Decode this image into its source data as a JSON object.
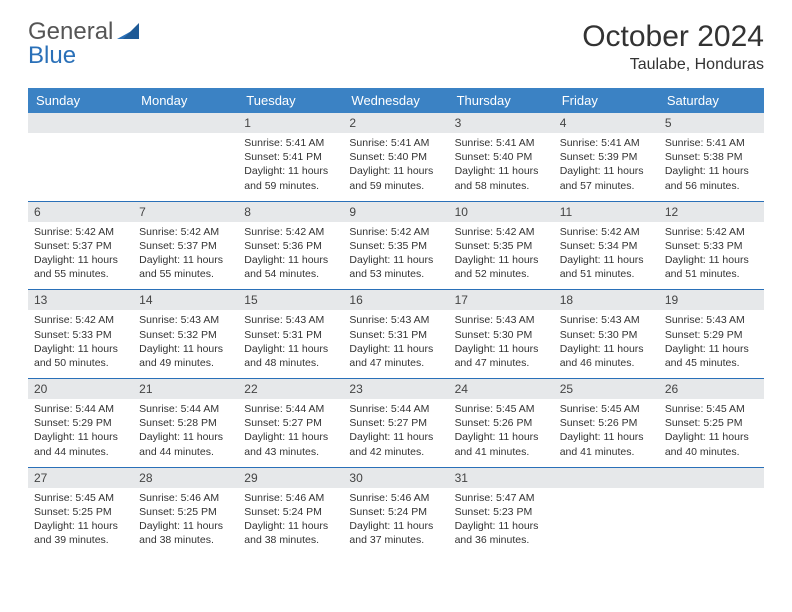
{
  "logo": {
    "gray": "General",
    "blue": "Blue"
  },
  "title": "October 2024",
  "location": "Taulabe, Honduras",
  "weekday_names": [
    "Sunday",
    "Monday",
    "Tuesday",
    "Wednesday",
    "Thursday",
    "Friday",
    "Saturday"
  ],
  "colors": {
    "header_bg": "#3b82c4",
    "header_fg": "#ffffff",
    "daynum_bg": "#e6e8ea",
    "row_border": "#2a70b8",
    "logo_blue": "#2a70b8"
  },
  "weeks": [
    [
      {
        "num": "",
        "sunrise": "",
        "sunset": "",
        "daylight": ""
      },
      {
        "num": "",
        "sunrise": "",
        "sunset": "",
        "daylight": ""
      },
      {
        "num": "1",
        "sunrise": "Sunrise: 5:41 AM",
        "sunset": "Sunset: 5:41 PM",
        "daylight": "Daylight: 11 hours and 59 minutes."
      },
      {
        "num": "2",
        "sunrise": "Sunrise: 5:41 AM",
        "sunset": "Sunset: 5:40 PM",
        "daylight": "Daylight: 11 hours and 59 minutes."
      },
      {
        "num": "3",
        "sunrise": "Sunrise: 5:41 AM",
        "sunset": "Sunset: 5:40 PM",
        "daylight": "Daylight: 11 hours and 58 minutes."
      },
      {
        "num": "4",
        "sunrise": "Sunrise: 5:41 AM",
        "sunset": "Sunset: 5:39 PM",
        "daylight": "Daylight: 11 hours and 57 minutes."
      },
      {
        "num": "5",
        "sunrise": "Sunrise: 5:41 AM",
        "sunset": "Sunset: 5:38 PM",
        "daylight": "Daylight: 11 hours and 56 minutes."
      }
    ],
    [
      {
        "num": "6",
        "sunrise": "Sunrise: 5:42 AM",
        "sunset": "Sunset: 5:37 PM",
        "daylight": "Daylight: 11 hours and 55 minutes."
      },
      {
        "num": "7",
        "sunrise": "Sunrise: 5:42 AM",
        "sunset": "Sunset: 5:37 PM",
        "daylight": "Daylight: 11 hours and 55 minutes."
      },
      {
        "num": "8",
        "sunrise": "Sunrise: 5:42 AM",
        "sunset": "Sunset: 5:36 PM",
        "daylight": "Daylight: 11 hours and 54 minutes."
      },
      {
        "num": "9",
        "sunrise": "Sunrise: 5:42 AM",
        "sunset": "Sunset: 5:35 PM",
        "daylight": "Daylight: 11 hours and 53 minutes."
      },
      {
        "num": "10",
        "sunrise": "Sunrise: 5:42 AM",
        "sunset": "Sunset: 5:35 PM",
        "daylight": "Daylight: 11 hours and 52 minutes."
      },
      {
        "num": "11",
        "sunrise": "Sunrise: 5:42 AM",
        "sunset": "Sunset: 5:34 PM",
        "daylight": "Daylight: 11 hours and 51 minutes."
      },
      {
        "num": "12",
        "sunrise": "Sunrise: 5:42 AM",
        "sunset": "Sunset: 5:33 PM",
        "daylight": "Daylight: 11 hours and 51 minutes."
      }
    ],
    [
      {
        "num": "13",
        "sunrise": "Sunrise: 5:42 AM",
        "sunset": "Sunset: 5:33 PM",
        "daylight": "Daylight: 11 hours and 50 minutes."
      },
      {
        "num": "14",
        "sunrise": "Sunrise: 5:43 AM",
        "sunset": "Sunset: 5:32 PM",
        "daylight": "Daylight: 11 hours and 49 minutes."
      },
      {
        "num": "15",
        "sunrise": "Sunrise: 5:43 AM",
        "sunset": "Sunset: 5:31 PM",
        "daylight": "Daylight: 11 hours and 48 minutes."
      },
      {
        "num": "16",
        "sunrise": "Sunrise: 5:43 AM",
        "sunset": "Sunset: 5:31 PM",
        "daylight": "Daylight: 11 hours and 47 minutes."
      },
      {
        "num": "17",
        "sunrise": "Sunrise: 5:43 AM",
        "sunset": "Sunset: 5:30 PM",
        "daylight": "Daylight: 11 hours and 47 minutes."
      },
      {
        "num": "18",
        "sunrise": "Sunrise: 5:43 AM",
        "sunset": "Sunset: 5:30 PM",
        "daylight": "Daylight: 11 hours and 46 minutes."
      },
      {
        "num": "19",
        "sunrise": "Sunrise: 5:43 AM",
        "sunset": "Sunset: 5:29 PM",
        "daylight": "Daylight: 11 hours and 45 minutes."
      }
    ],
    [
      {
        "num": "20",
        "sunrise": "Sunrise: 5:44 AM",
        "sunset": "Sunset: 5:29 PM",
        "daylight": "Daylight: 11 hours and 44 minutes."
      },
      {
        "num": "21",
        "sunrise": "Sunrise: 5:44 AM",
        "sunset": "Sunset: 5:28 PM",
        "daylight": "Daylight: 11 hours and 44 minutes."
      },
      {
        "num": "22",
        "sunrise": "Sunrise: 5:44 AM",
        "sunset": "Sunset: 5:27 PM",
        "daylight": "Daylight: 11 hours and 43 minutes."
      },
      {
        "num": "23",
        "sunrise": "Sunrise: 5:44 AM",
        "sunset": "Sunset: 5:27 PM",
        "daylight": "Daylight: 11 hours and 42 minutes."
      },
      {
        "num": "24",
        "sunrise": "Sunrise: 5:45 AM",
        "sunset": "Sunset: 5:26 PM",
        "daylight": "Daylight: 11 hours and 41 minutes."
      },
      {
        "num": "25",
        "sunrise": "Sunrise: 5:45 AM",
        "sunset": "Sunset: 5:26 PM",
        "daylight": "Daylight: 11 hours and 41 minutes."
      },
      {
        "num": "26",
        "sunrise": "Sunrise: 5:45 AM",
        "sunset": "Sunset: 5:25 PM",
        "daylight": "Daylight: 11 hours and 40 minutes."
      }
    ],
    [
      {
        "num": "27",
        "sunrise": "Sunrise: 5:45 AM",
        "sunset": "Sunset: 5:25 PM",
        "daylight": "Daylight: 11 hours and 39 minutes."
      },
      {
        "num": "28",
        "sunrise": "Sunrise: 5:46 AM",
        "sunset": "Sunset: 5:25 PM",
        "daylight": "Daylight: 11 hours and 38 minutes."
      },
      {
        "num": "29",
        "sunrise": "Sunrise: 5:46 AM",
        "sunset": "Sunset: 5:24 PM",
        "daylight": "Daylight: 11 hours and 38 minutes."
      },
      {
        "num": "30",
        "sunrise": "Sunrise: 5:46 AM",
        "sunset": "Sunset: 5:24 PM",
        "daylight": "Daylight: 11 hours and 37 minutes."
      },
      {
        "num": "31",
        "sunrise": "Sunrise: 5:47 AM",
        "sunset": "Sunset: 5:23 PM",
        "daylight": "Daylight: 11 hours and 36 minutes."
      },
      {
        "num": "",
        "sunrise": "",
        "sunset": "",
        "daylight": ""
      },
      {
        "num": "",
        "sunrise": "",
        "sunset": "",
        "daylight": ""
      }
    ]
  ]
}
